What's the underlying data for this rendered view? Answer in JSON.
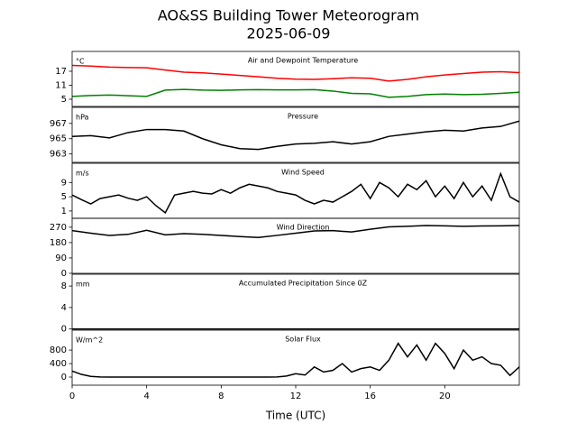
{
  "suptitle": "AO&SS Building Tower Meteorogram",
  "subtitle": "2025-06-09",
  "chart_data": [
    {
      "type": "line",
      "title": "Air and Dewpoint Temperature",
      "unit": "°C",
      "x": [
        0,
        1,
        2,
        3,
        4,
        5,
        6,
        7,
        8,
        9,
        10,
        11,
        12,
        13,
        14,
        15,
        16,
        17,
        18,
        19,
        20,
        21,
        22,
        23,
        24
      ],
      "series": [
        {
          "color": "red",
          "values": [
            19.5,
            19.2,
            18.8,
            18.6,
            18.5,
            17.5,
            16.6,
            16.3,
            15.8,
            15.2,
            14.6,
            14.0,
            13.6,
            13.5,
            13.8,
            14.2,
            14.0,
            12.8,
            13.5,
            14.6,
            15.4,
            16.0,
            16.6,
            16.8,
            16.4
          ]
        },
        {
          "color": "green",
          "values": [
            6.2,
            6.6,
            6.8,
            6.5,
            6.2,
            8.9,
            9.2,
            8.9,
            8.8,
            9.0,
            9.1,
            9.0,
            9.0,
            9.1,
            8.5,
            7.5,
            7.3,
            5.8,
            6.2,
            7.0,
            7.2,
            7.0,
            7.1,
            7.5,
            8.0
          ]
        }
      ],
      "xlim": [
        0,
        24
      ],
      "ylim": [
        1.9,
        25.5
      ],
      "yticks": [
        5,
        11,
        17
      ]
    },
    {
      "type": "line",
      "title": "Pressure",
      "unit": "hPa",
      "x": [
        0,
        1,
        2,
        3,
        4,
        5,
        6,
        7,
        8,
        9,
        10,
        11,
        12,
        13,
        14,
        15,
        16,
        17,
        18,
        19,
        20,
        21,
        22,
        23,
        24
      ],
      "series": [
        {
          "color": "black",
          "values": [
            965.3,
            965.4,
            965.1,
            965.8,
            966.2,
            966.2,
            966.0,
            965.0,
            964.2,
            963.7,
            963.6,
            964.0,
            964.3,
            964.4,
            964.6,
            964.3,
            964.6,
            965.3,
            965.6,
            965.9,
            966.1,
            966.0,
            966.4,
            966.6,
            967.3
          ]
        }
      ],
      "xlim": [
        0,
        24
      ],
      "ylim": [
        961.9,
        969.1
      ],
      "yticks": [
        963,
        965,
        967
      ]
    },
    {
      "type": "line",
      "title": "Wind Speed",
      "unit": "m/s",
      "x": [
        0,
        0.5,
        1,
        1.5,
        2,
        2.5,
        3,
        3.5,
        4,
        4.5,
        5,
        5.5,
        6,
        6.5,
        7,
        7.5,
        8,
        8.5,
        9,
        9.5,
        10,
        10.5,
        11,
        11.5,
        12,
        12.5,
        13,
        13.5,
        14,
        14.5,
        15,
        15.5,
        16,
        16.5,
        17,
        17.5,
        18,
        18.5,
        19,
        19.5,
        20,
        20.5,
        21,
        21.5,
        22,
        22.5,
        23,
        23.5,
        24
      ],
      "series": [
        {
          "color": "black",
          "values": [
            5.5,
            4.2,
            3.0,
            4.5,
            5.0,
            5.5,
            4.6,
            4.0,
            5.0,
            2.5,
            0.5,
            5.5,
            6.0,
            6.5,
            6.0,
            5.8,
            7.0,
            6.0,
            7.5,
            8.5,
            8.0,
            7.5,
            6.5,
            6.0,
            5.5,
            4.0,
            3.0,
            4.0,
            3.5,
            5.0,
            6.5,
            8.5,
            4.5,
            9.0,
            7.5,
            5.0,
            8.5,
            7.0,
            9.5,
            5.0,
            8.0,
            4.5,
            9.0,
            5.0,
            8.0,
            4.0,
            11.5,
            5.0,
            3.5
          ]
        }
      ],
      "xlim": [
        0,
        24
      ],
      "ylim": [
        -1.05,
        14.4
      ],
      "yticks": [
        1,
        5,
        9
      ]
    },
    {
      "type": "line",
      "title": "Wind Direction",
      "x": [
        0,
        1,
        2,
        3,
        4,
        5,
        6,
        7,
        8,
        9,
        10,
        11,
        12,
        13,
        14,
        15,
        16,
        17,
        18,
        19,
        20,
        21,
        22,
        23,
        24
      ],
      "series": [
        {
          "color": "black",
          "values": [
            250,
            235,
            222,
            228,
            252,
            225,
            232,
            228,
            222,
            215,
            210,
            222,
            235,
            248,
            250,
            242,
            258,
            272,
            275,
            280,
            278,
            275,
            277,
            278,
            280
          ]
        }
      ],
      "xlim": [
        0,
        24
      ],
      "ylim": [
        0,
        322
      ],
      "yticks": [
        0,
        90,
        180,
        270
      ]
    },
    {
      "type": "line",
      "title": "Accumulated Precipitation Since 0Z",
      "unit": "mm",
      "x": [
        0,
        1,
        2,
        3,
        4,
        5,
        6,
        7,
        8,
        9,
        10,
        11,
        12,
        13,
        14,
        15,
        16,
        17,
        18,
        19,
        20,
        21,
        22,
        23,
        24
      ],
      "series": [
        {
          "color": "black",
          "values": [
            0,
            0,
            0,
            0,
            0,
            0,
            0,
            0,
            0,
            0,
            0,
            0,
            0,
            0,
            0,
            0,
            0,
            0,
            0,
            0,
            0,
            0,
            0,
            0,
            0
          ]
        }
      ],
      "xlim": [
        0,
        24
      ],
      "ylim": [
        -0.05,
        10.2
      ],
      "yticks": [
        0,
        4,
        8
      ]
    },
    {
      "type": "line",
      "title": "Solar Flux",
      "unit": "W/m^2",
      "x": [
        0,
        0.5,
        1,
        1.5,
        2,
        2.5,
        3,
        3.5,
        4,
        4.5,
        5,
        5.5,
        6,
        6.5,
        7,
        7.5,
        8,
        8.5,
        9,
        9.5,
        10,
        10.5,
        11,
        11.5,
        12,
        12.5,
        13,
        13.5,
        14,
        14.5,
        15,
        15.5,
        16,
        16.5,
        17,
        17.5,
        18,
        18.5,
        19,
        19.5,
        20,
        20.5,
        21,
        21.5,
        22,
        22.5,
        23,
        23.5,
        24
      ],
      "series": [
        {
          "color": "black",
          "values": [
            180,
            80,
            20,
            5,
            0,
            0,
            0,
            0,
            0,
            0,
            0,
            0,
            0,
            0,
            0,
            0,
            0,
            0,
            0,
            0,
            0,
            0,
            5,
            30,
            100,
            60,
            300,
            150,
            200,
            400,
            150,
            250,
            300,
            200,
            500,
            1000,
            600,
            950,
            500,
            1000,
            700,
            250,
            800,
            500,
            600,
            400,
            350,
            50,
            300
          ]
        }
      ],
      "xlim": [
        0,
        24
      ],
      "ylim": [
        -240,
        1390
      ],
      "yticks": [
        0,
        400,
        800
      ],
      "xticks": [
        0,
        4,
        8,
        12,
        16,
        20
      ],
      "xlabel": "Time (UTC)"
    }
  ]
}
